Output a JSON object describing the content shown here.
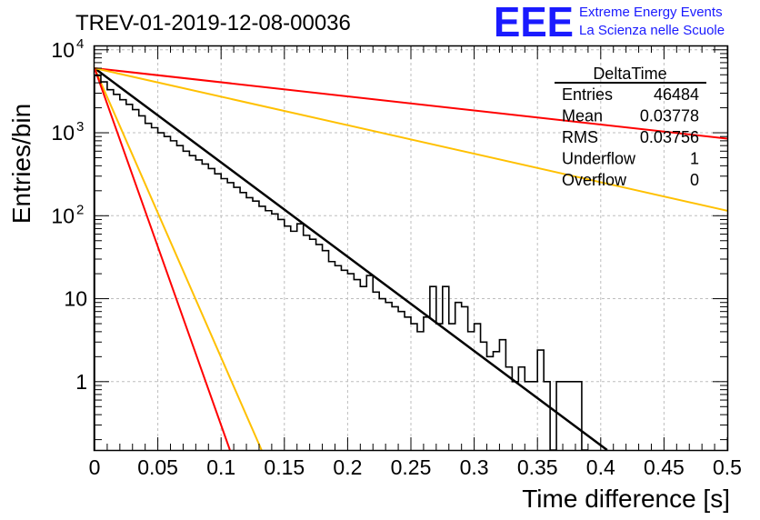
{
  "chart_data": {
    "type": "histogram",
    "title": "TREV-01-2019-12-08-00036",
    "xlabel": "Time difference [s]",
    "ylabel": "Entries/bin",
    "xlim": [
      0,
      0.5
    ],
    "ylim": [
      0.15,
      11000
    ],
    "y_scale": "log",
    "grid": true,
    "x_ticks": [
      {
        "value": 0,
        "label": "0"
      },
      {
        "value": 0.05,
        "label": "0.05"
      },
      {
        "value": 0.1,
        "label": "0.1"
      },
      {
        "value": 0.15,
        "label": "0.15"
      },
      {
        "value": 0.2,
        "label": "0.2"
      },
      {
        "value": 0.25,
        "label": "0.25"
      },
      {
        "value": 0.3,
        "label": "0.3"
      },
      {
        "value": 0.35,
        "label": "0.35"
      },
      {
        "value": 0.4,
        "label": "0.4"
      },
      {
        "value": 0.45,
        "label": "0.45"
      },
      {
        "value": 0.5,
        "label": "0.5"
      }
    ],
    "y_ticks": [
      {
        "value": 1,
        "label": "1",
        "sup": ""
      },
      {
        "value": 10,
        "label": "10",
        "sup": ""
      },
      {
        "value": 100,
        "label": "10",
        "sup": "2"
      },
      {
        "value": 1000,
        "label": "10",
        "sup": "3"
      },
      {
        "value": 10000,
        "label": "10",
        "sup": "4"
      }
    ],
    "histogram": {
      "name": "DeltaTime",
      "bin_edges_start": 0,
      "bin_width": 0.005,
      "counts": [
        4900,
        4100,
        3300,
        2900,
        2500,
        2200,
        1900,
        1600,
        1300,
        1150,
        1000,
        900,
        800,
        700,
        600,
        530,
        470,
        420,
        370,
        320,
        280,
        250,
        220,
        190,
        165,
        150,
        130,
        115,
        105,
        90,
        75,
        65,
        80,
        58,
        52,
        45,
        38,
        28,
        25,
        22,
        20,
        17,
        14,
        19,
        12,
        10,
        9,
        8,
        7,
        6,
        5,
        4,
        6,
        14,
        5,
        14,
        5,
        9,
        8,
        4,
        5,
        3,
        2,
        2.3,
        3.2,
        1.5,
        1,
        1.5,
        1,
        1,
        2.4,
        1,
        0,
        1,
        1,
        1,
        1,
        0
      ]
    },
    "fit_lines": [
      {
        "color": "#000000",
        "width": 2.5,
        "points": [
          [
            0,
            6000
          ],
          [
            0.405,
            0.15
          ]
        ]
      },
      {
        "color": "#ff0000",
        "width": 2,
        "points": [
          [
            0,
            6000
          ],
          [
            0.5,
            850
          ]
        ]
      },
      {
        "color": "#ffc000",
        "width": 2,
        "points": [
          [
            0,
            6000
          ],
          [
            0.5,
            115
          ]
        ]
      },
      {
        "color": "#ffc000",
        "width": 2,
        "points": [
          [
            0,
            6000
          ],
          [
            0.132,
            0.15
          ]
        ]
      },
      {
        "color": "#ff0000",
        "width": 2,
        "points": [
          [
            0,
            6000
          ],
          [
            0.107,
            0.15
          ]
        ]
      }
    ],
    "stats_box": {
      "title": "DeltaTime",
      "rows": [
        {
          "label": "Entries",
          "value": "46484"
        },
        {
          "label": "Mean",
          "value": "0.03778"
        },
        {
          "label": "RMS",
          "value": "0.03756"
        },
        {
          "label": "Underflow",
          "value": "1"
        },
        {
          "label": "Overflow",
          "value": "0"
        }
      ]
    }
  },
  "logo": {
    "mark": "EEE",
    "line1": "Extreme Energy Events",
    "line2": "La Scienza nelle Scuole",
    "color": "#1a1aff"
  }
}
